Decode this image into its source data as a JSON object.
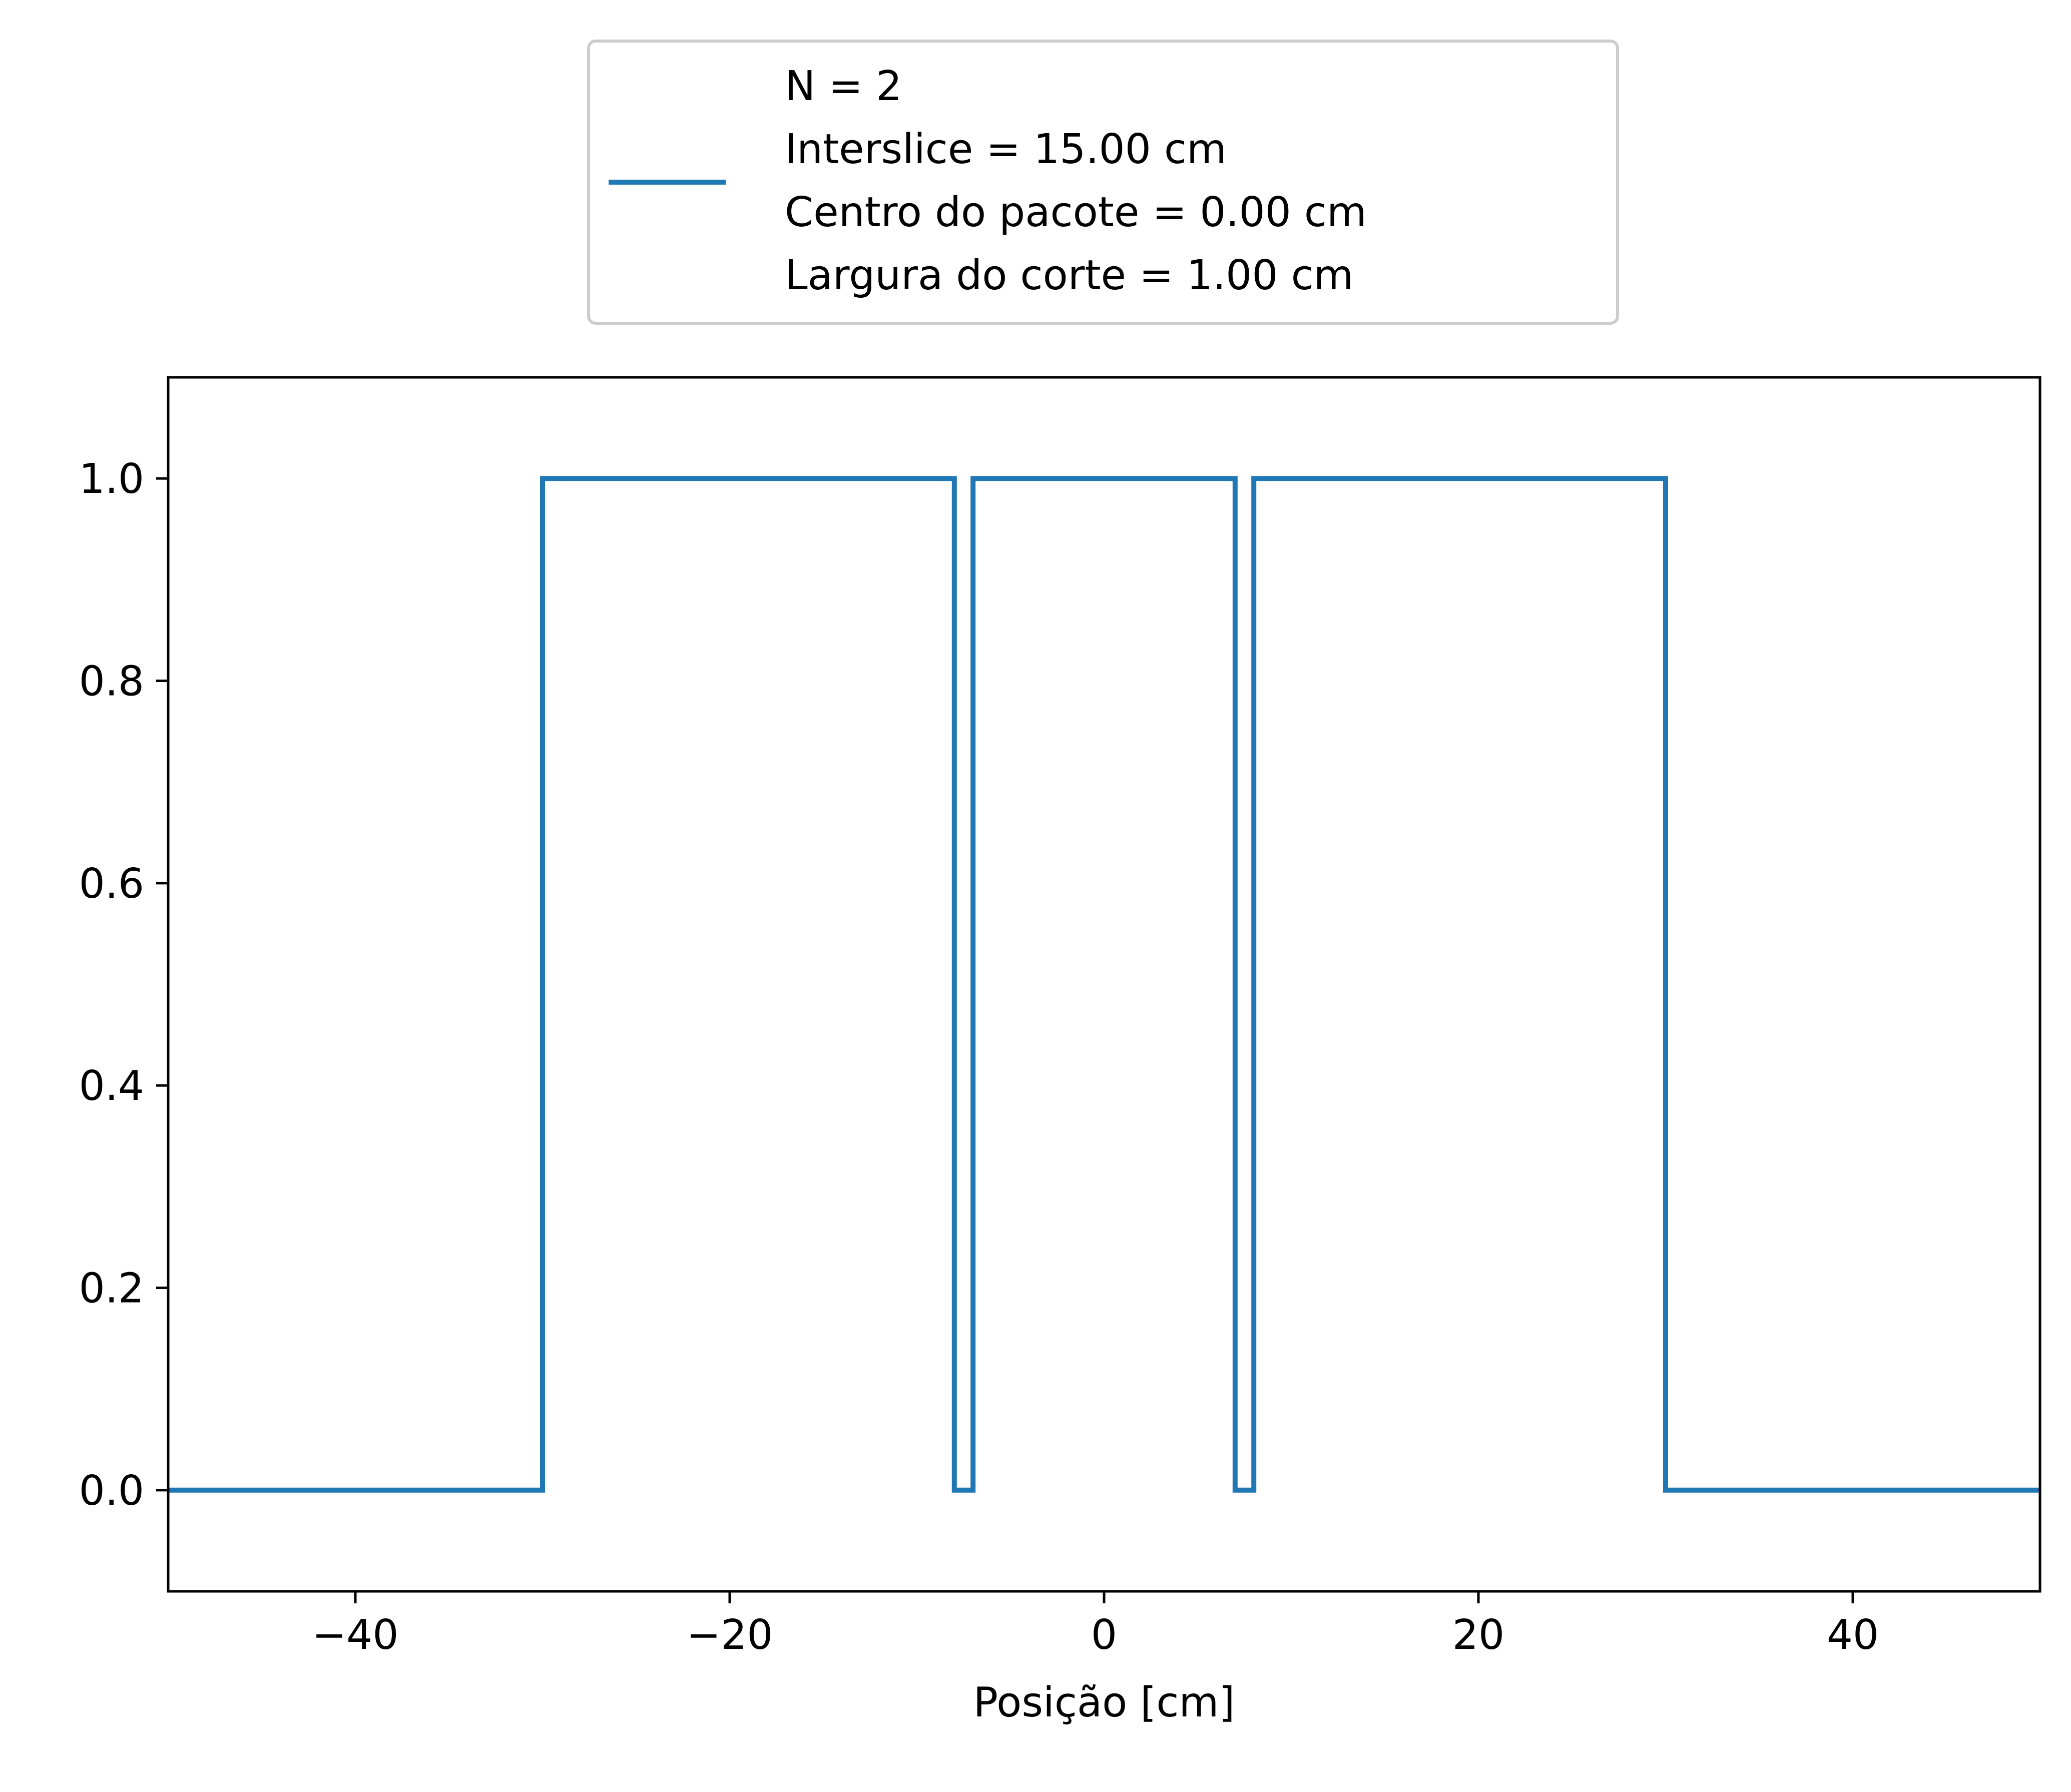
{
  "chart_data": {
    "type": "line",
    "title": "",
    "xlabel": "Posição [cm]",
    "ylabel": "",
    "xlim": [
      -50,
      50
    ],
    "ylim": [
      -0.1,
      1.1
    ],
    "xticks": [
      -40,
      -20,
      0,
      20,
      40
    ],
    "xtick_labels": [
      "−40",
      "−20",
      "0",
      "20",
      "40"
    ],
    "yticks": [
      0.0,
      0.2,
      0.4,
      0.6,
      0.8,
      1.0
    ],
    "ytick_labels": [
      "0.0",
      "0.2",
      "0.4",
      "0.6",
      "0.8",
      "1.0"
    ],
    "grid": false,
    "legend_position": "top-center (outside, above plot)",
    "series": [
      {
        "name": "N = 2\nInterslice = 15.00 cm\nCentro do pacote = 0.00 cm\nLargura do corte = 1.00 cm",
        "color": "#1f77b4",
        "step": true,
        "x": [
          -50,
          -30,
          -30,
          -8,
          -8,
          -7,
          -7,
          7,
          7,
          8,
          8,
          30,
          30,
          50
        ],
        "y": [
          0,
          0,
          1,
          1,
          0,
          0,
          1,
          1,
          0,
          0,
          1,
          1,
          0,
          0
        ]
      }
    ]
  },
  "legend": {
    "lines": [
      "N = 2",
      "Interslice = 15.00 cm",
      "Centro do pacote = 0.00 cm",
      "Largura do corte = 1.00 cm"
    ]
  }
}
